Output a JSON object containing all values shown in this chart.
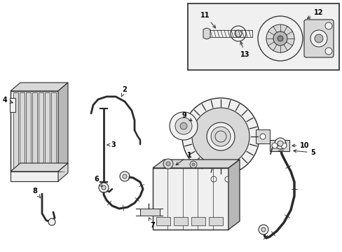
{
  "bg_color": "#ffffff",
  "line_color": "#2a2a2a",
  "label_color": "#000000",
  "fig_width": 4.89,
  "fig_height": 3.6,
  "dpi": 100
}
